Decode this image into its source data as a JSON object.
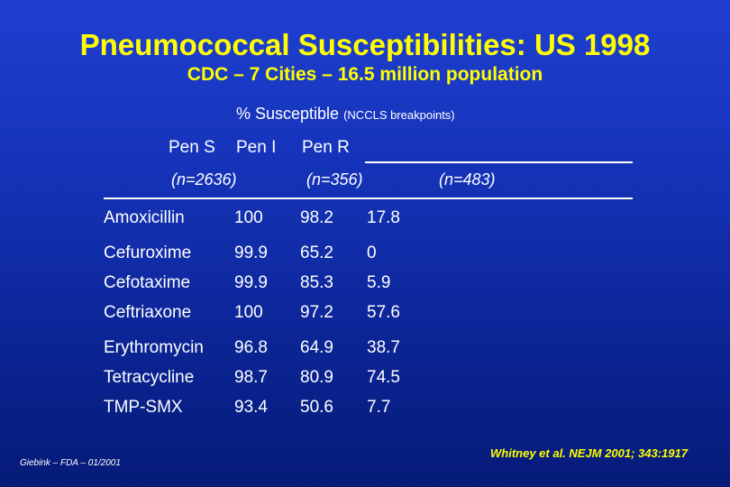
{
  "slide": {
    "title": "Pneumococcal Susceptibilities: US 1998",
    "subtitle": "CDC – 7 Cities – 16.5 million population",
    "column_heading": "% Susceptible",
    "column_heading_note": "(NCCLS breakpoints)"
  },
  "table": {
    "headers": [
      "Pen S",
      "Pen I",
      "Pen R"
    ],
    "counts": [
      "(n=2636)",
      "(n=356)",
      "(n=483)"
    ],
    "groups": [
      {
        "rows": [
          {
            "drug": "Amoxicillin",
            "values": [
              "100",
              "98.2",
              "17.8"
            ]
          }
        ]
      },
      {
        "rows": [
          {
            "drug": "Cefuroxime",
            "values": [
              "99.9",
              "65.2",
              "0"
            ]
          },
          {
            "drug": "Cefotaxime",
            "values": [
              "99.9",
              "85.3",
              "5.9"
            ]
          },
          {
            "drug": "Ceftriaxone",
            "values": [
              "100",
              "97.2",
              "57.6"
            ]
          }
        ]
      },
      {
        "rows": [
          {
            "drug": "Erythromycin",
            "values": [
              "96.8",
              "64.9",
              "38.7"
            ]
          },
          {
            "drug": "Tetracycline",
            "values": [
              "98.7",
              "80.9",
              "74.5"
            ]
          },
          {
            "drug": "TMP-SMX",
            "values": [
              "93.4",
              "50.6",
              "7.7"
            ]
          }
        ]
      }
    ]
  },
  "footer": {
    "left": "Giebink – FDA – 01/2001",
    "right": "Whitney et al. NEJM 2001; 343:1917"
  },
  "colors": {
    "title": "#ffff00",
    "text": "#ffffff",
    "background_top": "#1f3fd0",
    "background_bottom": "#061b78"
  }
}
